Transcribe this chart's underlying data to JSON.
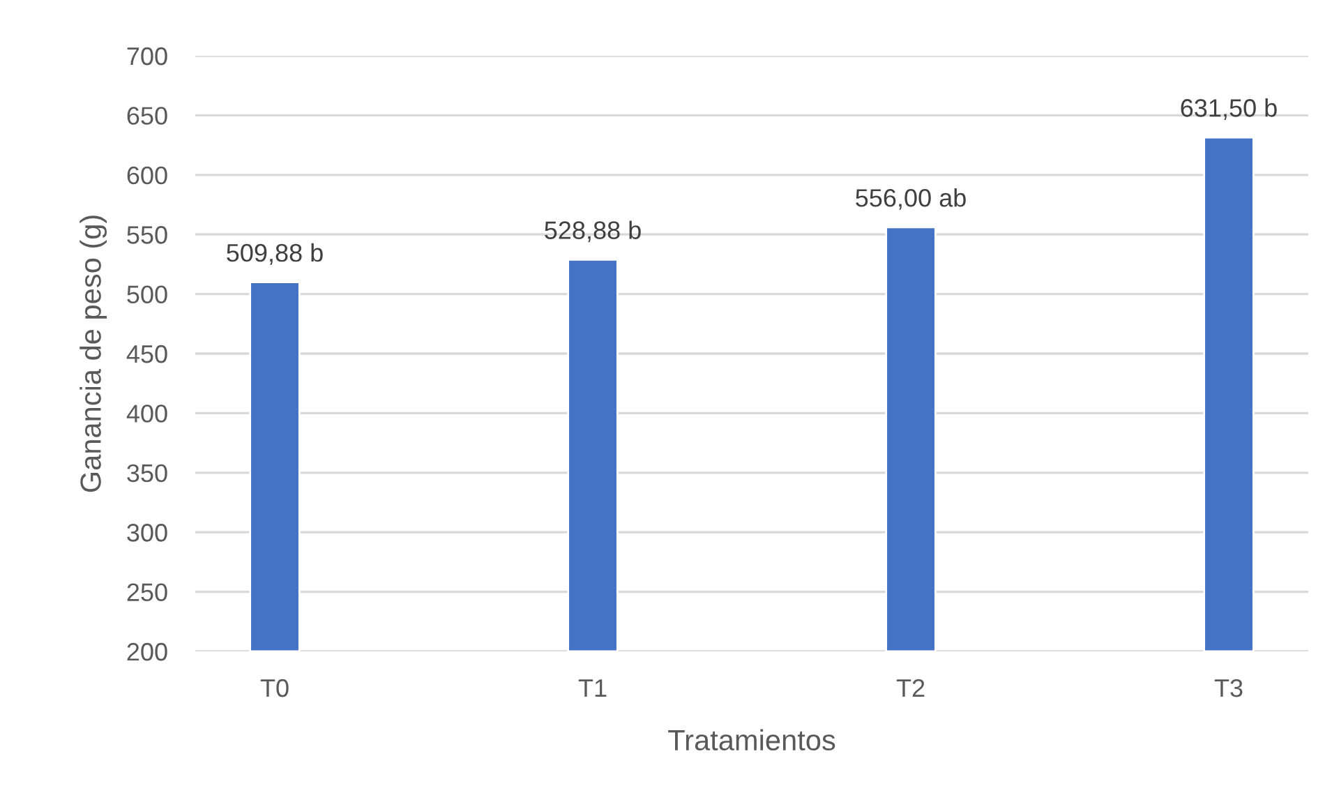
{
  "chart_data": {
    "type": "bar",
    "xlabel": "Tratamientos",
    "ylabel": "Ganancia de peso (g)",
    "categories": [
      "T0",
      null,
      "T1",
      null,
      "T2",
      null,
      "T3"
    ],
    "values": [
      509.88,
      null,
      528.88,
      null,
      556.0,
      null,
      631.5
    ],
    "value_labels": [
      "509,88 b",
      null,
      "528,88 b",
      null,
      "556,00 ab",
      null,
      "631,50 b"
    ],
    "color": "#4472c4",
    "ylim": [
      200,
      700
    ],
    "yticks": [
      200,
      250,
      300,
      350,
      400,
      450,
      500,
      550,
      600,
      650,
      700
    ],
    "grid": "y",
    "legend": false
  }
}
